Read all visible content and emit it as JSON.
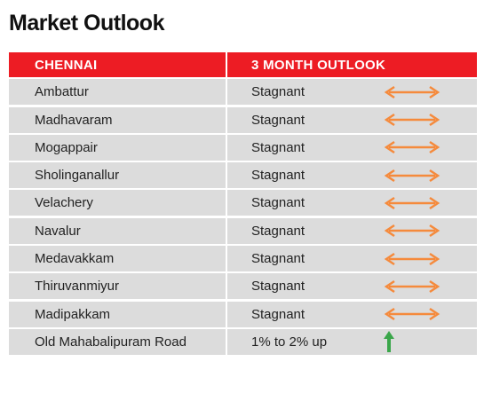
{
  "title": "Market Outlook",
  "table": {
    "headers": [
      "CHENNAI",
      "3 MONTH OUTLOOK"
    ],
    "rows": [
      {
        "location": "Ambattur",
        "outlook": "Stagnant",
        "trend_icon": "orange-double-arrow-icon"
      },
      {
        "location": "Madhavaram",
        "outlook": "Stagnant",
        "trend_icon": "orange-double-arrow-icon"
      },
      {
        "location": "Mogappair",
        "outlook": "Stagnant",
        "trend_icon": "orange-double-arrow-icon"
      },
      {
        "location": "Sholinganallur",
        "outlook": "Stagnant",
        "trend_icon": "orange-double-arrow-icon"
      },
      {
        "location": "Velachery",
        "outlook": "Stagnant",
        "trend_icon": "orange-double-arrow-icon"
      },
      {
        "location": "Navalur",
        "outlook": "Stagnant",
        "trend_icon": "orange-double-arrow-icon"
      },
      {
        "location": "Medavakkam",
        "outlook": "Stagnant",
        "trend_icon": "orange-double-arrow-icon"
      },
      {
        "location": "Thiruvanmiyur",
        "outlook": "Stagnant",
        "trend_icon": "orange-double-arrow-icon"
      },
      {
        "location": "Madipakkam",
        "outlook": "Stagnant",
        "trend_icon": "orange-double-arrow-icon"
      },
      {
        "location": "Old Mahabalipuram Road",
        "outlook": "1% to 2% up",
        "trend_icon": "green-up-arrow-icon"
      }
    ]
  },
  "colors": {
    "header_red": "#ed1c24",
    "row_gray": "#dcdcdc",
    "stagnant_orange": "#f58a3c",
    "up_green": "#3aa64a"
  }
}
